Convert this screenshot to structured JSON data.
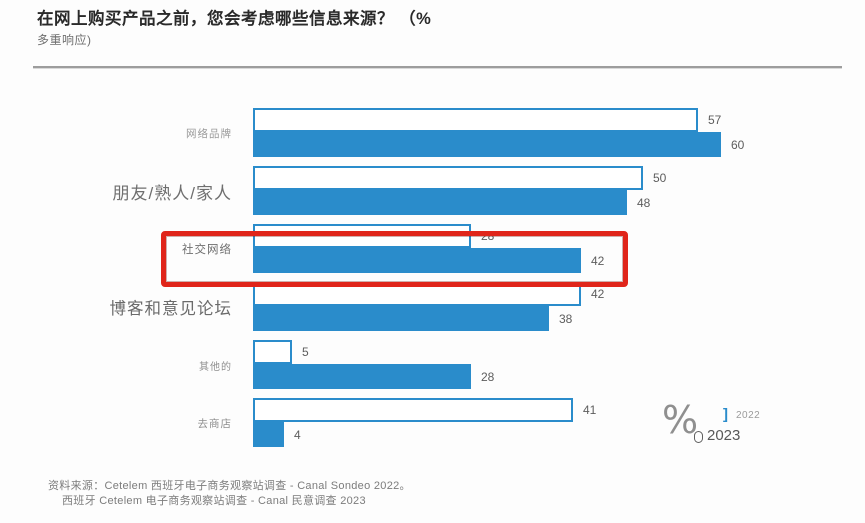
{
  "header": {
    "title_line1": "在网上购买产品之前，您会考虑哪些信息来源？ （%",
    "title_line2": "多重响应)"
  },
  "chart_data": {
    "type": "bar",
    "orientation": "horizontal",
    "title": "在网上购买产品之前，您会考虑哪些信息来源？（% 多重响应)",
    "unit": "%",
    "categories": [
      "网络品牌",
      "朋友/熟人/家人",
      "社交网络",
      "博客和意见论坛",
      "其他的",
      "去商店"
    ],
    "series": [
      {
        "name": "2022",
        "style": "outline",
        "values": [
          57,
          50,
          28,
          42,
          5,
          41
        ]
      },
      {
        "name": "2023",
        "style": "filled",
        "values": [
          60,
          48,
          42,
          38,
          28,
          4
        ]
      }
    ],
    "xlim": [
      0,
      60
    ],
    "grid": false,
    "legend_position": "bottom-right",
    "highlight": {
      "category": "社交网络",
      "note": "red box annotation"
    }
  },
  "legend": {
    "unit": "%",
    "items": [
      {
        "label": "2022",
        "swatch": "outline"
      },
      {
        "label": "2023",
        "swatch": "filled"
      }
    ]
  },
  "colors": {
    "bar_blue": "#2a8ccb",
    "highlight_red": "#e0251a",
    "value_label": "#5d5d5d"
  },
  "footer": {
    "line1": "资料来源：Cetelem 西班牙电子商务观察站调查 - Canal Sondeo 2022。",
    "line2": "西班牙 Cetelem 电子商务观察站调查 - Canal 民意调查 2023"
  }
}
